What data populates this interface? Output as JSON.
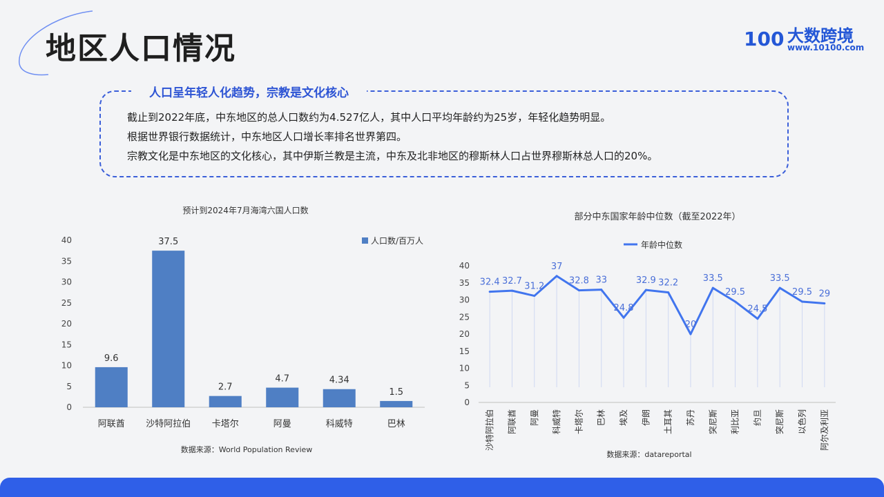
{
  "header": {
    "title": "地区人口情况"
  },
  "logo": {
    "mark": "100",
    "name": "大数跨境",
    "url": "www.10100.com"
  },
  "summary": {
    "title": "人口呈年轻人化趋势，宗教是文化核心",
    "lines": [
      "截止到2022年底，中东地区的总人口数约为4.527亿人，其中人口平均年龄约为25岁，年轻化趋势明显。",
      "根据世界银行数据统计，中东地区人口增长率排名世界第四。",
      "宗教文化是中东地区的文化核心，其中伊斯兰教是主流，中东及北非地区的穆斯林人口占世界穆斯林总人口的20%。"
    ]
  },
  "colors": {
    "accent": "#2f5fe8",
    "bar": "#4f7fc4",
    "line": "#4175ee"
  },
  "chart_data": [
    {
      "type": "bar",
      "title": "预计到2024年7月海湾六国人口数",
      "categories": [
        "阿联酋",
        "沙特阿拉伯",
        "卡塔尔",
        "阿曼",
        "科威特",
        "巴林"
      ],
      "series": [
        {
          "name": "人口数/百万人",
          "values": [
            9.6,
            37.5,
            2.7,
            4.7,
            4.34,
            1.5
          ]
        }
      ],
      "data_labels": [
        "9.6",
        "37.5",
        "2.7",
        "4.7",
        "4.34",
        "1.5"
      ],
      "ylim": [
        0,
        40
      ],
      "yticks": [
        0,
        5,
        10,
        15,
        20,
        25,
        30,
        35,
        40
      ],
      "legend": "top-right",
      "grid": false,
      "source": "数据来源：World Population Review"
    },
    {
      "type": "line",
      "title": "部分中东国家年龄中位数（截至2022年）",
      "categories": [
        "沙特阿拉伯",
        "阿联酋",
        "阿曼",
        "科威特",
        "卡塔尔",
        "巴林",
        "埃及",
        "伊朗",
        "土耳其",
        "苏丹",
        "突尼斯",
        "利比亚",
        "约旦",
        "突尼斯",
        "以色列",
        "阿尔及利亚"
      ],
      "series": [
        {
          "name": "年龄中位数",
          "values": [
            32.4,
            32.7,
            31.2,
            37,
            32.8,
            33,
            24.8,
            32.9,
            32.2,
            20,
            33.5,
            29.5,
            24.5,
            33.5,
            29.5,
            29
          ]
        }
      ],
      "data_labels": [
        "32.4",
        "32.7",
        "31.2",
        "37",
        "32.8",
        "33",
        "24.8",
        "32.9",
        "32.2",
        "20",
        "33.5",
        "29.5",
        "24.5",
        "33.5",
        "29.5",
        "29"
      ],
      "ylim": [
        0,
        40
      ],
      "yticks": [
        0,
        5,
        10,
        15,
        20,
        25,
        30,
        35,
        40
      ],
      "legend": "top-center",
      "grid": false,
      "source": "数据来源：datareportal"
    }
  ]
}
